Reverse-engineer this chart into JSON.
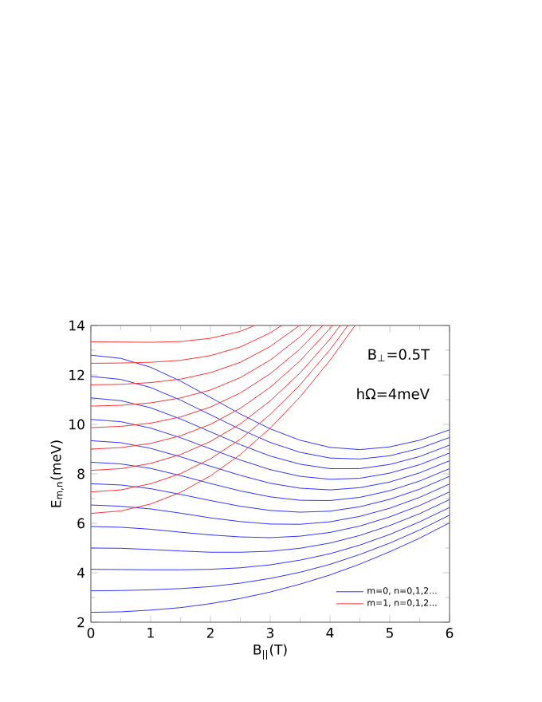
{
  "chart_data": {
    "type": "line",
    "xlabel": "B$_{||}$(T)",
    "ylabel": "E$_{m,n}$(meV)",
    "annotations": [
      "B$_{⊥}$=0.5T",
      "hΩ=4meV"
    ],
    "x": [
      0,
      0.5,
      1,
      1.5,
      2,
      2.5,
      3,
      3.5,
      4,
      4.5,
      5,
      5.5,
      6
    ],
    "xlim": [
      0,
      6
    ],
    "ylim": [
      2,
      14
    ],
    "xticks": [
      0,
      1,
      2,
      3,
      4,
      5,
      6
    ],
    "yticks": [
      2,
      4,
      6,
      8,
      10,
      12,
      14
    ],
    "grid": false,
    "legend": "bottom right",
    "marker": "none",
    "line_style": "solid",
    "series": [
      {
        "name": "m=0, n=0,1,2...",
        "color": "#3333ff",
        "values": [
          2.4,
          2.42,
          2.49,
          2.59,
          2.75,
          2.96,
          3.22,
          3.54,
          3.91,
          4.35,
          4.85,
          5.4,
          6.02
        ]
      },
      {
        "color": "#3333ff",
        "values": [
          3.27,
          3.28,
          3.31,
          3.36,
          3.44,
          3.58,
          3.77,
          4.02,
          4.34,
          4.74,
          5.2,
          5.73,
          6.33
        ]
      },
      {
        "color": "#3333ff",
        "values": [
          4.14,
          4.13,
          4.12,
          4.12,
          4.14,
          4.2,
          4.32,
          4.51,
          4.77,
          5.12,
          5.55,
          6.06,
          6.64
        ]
      },
      {
        "color": "#3333ff",
        "values": [
          5.0,
          4.99,
          4.94,
          4.88,
          4.83,
          4.83,
          4.87,
          4.99,
          5.2,
          5.51,
          5.91,
          6.39,
          6.96
        ]
      },
      {
        "color": "#3333ff",
        "values": [
          5.87,
          5.84,
          5.76,
          5.64,
          5.53,
          5.45,
          5.42,
          5.48,
          5.63,
          5.89,
          6.26,
          6.72,
          7.27
        ]
      },
      {
        "color": "#3333ff",
        "values": [
          6.74,
          6.69,
          6.58,
          6.41,
          6.22,
          6.07,
          5.97,
          5.96,
          6.06,
          6.28,
          6.61,
          7.05,
          7.59
        ]
      },
      {
        "color": "#3333ff",
        "values": [
          7.6,
          7.55,
          7.4,
          7.17,
          6.92,
          6.69,
          6.52,
          6.45,
          6.49,
          6.67,
          6.97,
          7.38,
          7.9
        ]
      },
      {
        "color": "#3333ff",
        "values": [
          8.47,
          8.4,
          8.22,
          7.93,
          7.61,
          7.31,
          7.07,
          6.93,
          6.92,
          7.05,
          7.32,
          7.71,
          8.21
        ]
      },
      {
        "color": "#3333ff",
        "values": [
          9.34,
          9.26,
          9.03,
          8.69,
          8.31,
          7.94,
          7.62,
          7.42,
          7.35,
          7.44,
          7.67,
          8.04,
          8.53
        ]
      },
      {
        "color": "#3333ff",
        "values": [
          10.2,
          10.11,
          9.85,
          9.46,
          9.01,
          8.56,
          8.17,
          7.9,
          7.78,
          7.82,
          8.03,
          8.37,
          8.84
        ]
      },
      {
        "color": "#3333ff",
        "values": [
          11.07,
          10.96,
          10.67,
          10.22,
          9.7,
          9.18,
          8.72,
          8.39,
          8.21,
          8.21,
          8.38,
          8.7,
          9.16
        ]
      },
      {
        "color": "#3333ff",
        "values": [
          11.94,
          11.82,
          11.49,
          10.98,
          10.39,
          9.8,
          9.27,
          8.87,
          8.64,
          8.6,
          8.73,
          9.03,
          9.47
        ]
      },
      {
        "color": "#3333ff",
        "values": [
          12.8,
          12.67,
          12.31,
          11.75,
          11.09,
          10.42,
          9.82,
          9.36,
          9.07,
          8.98,
          9.09,
          9.36,
          9.78
        ]
      },
      {
        "name": "m=1, n=0,1,2...",
        "color": "#ff3333",
        "x": [
          0,
          0.5,
          1,
          1.5,
          2,
          2.5,
          3,
          3.5,
          4,
          4.42
        ],
        "values": [
          6.4,
          6.5,
          6.78,
          7.25,
          7.92,
          8.78,
          9.85,
          11.11,
          12.59,
          14
        ]
      },
      {
        "color": "#ff3333",
        "x": [
          0,
          0.5,
          1,
          1.5,
          2,
          2.5,
          3,
          3.5,
          4,
          4.3
        ],
        "values": [
          7.27,
          7.35,
          7.6,
          8.01,
          8.61,
          9.4,
          10.4,
          11.6,
          13.02,
          14
        ]
      },
      {
        "color": "#ff3333",
        "x": [
          0,
          0.5,
          1,
          1.5,
          2,
          2.5,
          3,
          3.5,
          4,
          4.17
        ],
        "values": [
          8.14,
          8.21,
          8.42,
          8.78,
          9.31,
          10.02,
          10.95,
          12.08,
          13.45,
          14
        ]
      },
      {
        "color": "#ff3333",
        "x": [
          0,
          0.5,
          1,
          1.5,
          2,
          2.5,
          3,
          3.5,
          4,
          4.04
        ],
        "values": [
          9.0,
          9.06,
          9.23,
          9.54,
          10.0,
          10.65,
          11.5,
          12.57,
          13.88,
          14
        ]
      },
      {
        "color": "#ff3333",
        "x": [
          0,
          0.5,
          1,
          1.5,
          2,
          2.5,
          3,
          3.5,
          3.88
        ],
        "values": [
          9.87,
          9.92,
          10.05,
          10.3,
          10.7,
          11.27,
          12.05,
          13.05,
          14
        ]
      },
      {
        "color": "#ff3333",
        "x": [
          0,
          0.5,
          1,
          1.5,
          2,
          2.5,
          3,
          3.5,
          3.69
        ],
        "values": [
          10.74,
          10.77,
          10.87,
          11.07,
          11.39,
          11.89,
          12.6,
          13.54,
          14
        ]
      },
      {
        "color": "#ff3333",
        "x": [
          0,
          0.5,
          1,
          1.5,
          2,
          2.5,
          3,
          3.49
        ],
        "values": [
          11.6,
          11.62,
          11.69,
          11.83,
          12.09,
          12.51,
          13.15,
          14
        ]
      },
      {
        "color": "#ff3333",
        "x": [
          0,
          0.5,
          1,
          1.5,
          2,
          2.5,
          3,
          3.19
        ],
        "values": [
          12.47,
          12.48,
          12.51,
          12.59,
          12.78,
          13.13,
          13.7,
          14
        ]
      },
      {
        "color": "#ff3333",
        "x": [
          0,
          0.5,
          1,
          1.5,
          2,
          2.5,
          2.74
        ],
        "values": [
          13.34,
          13.33,
          13.32,
          13.35,
          13.48,
          13.76,
          14
        ]
      }
    ]
  }
}
